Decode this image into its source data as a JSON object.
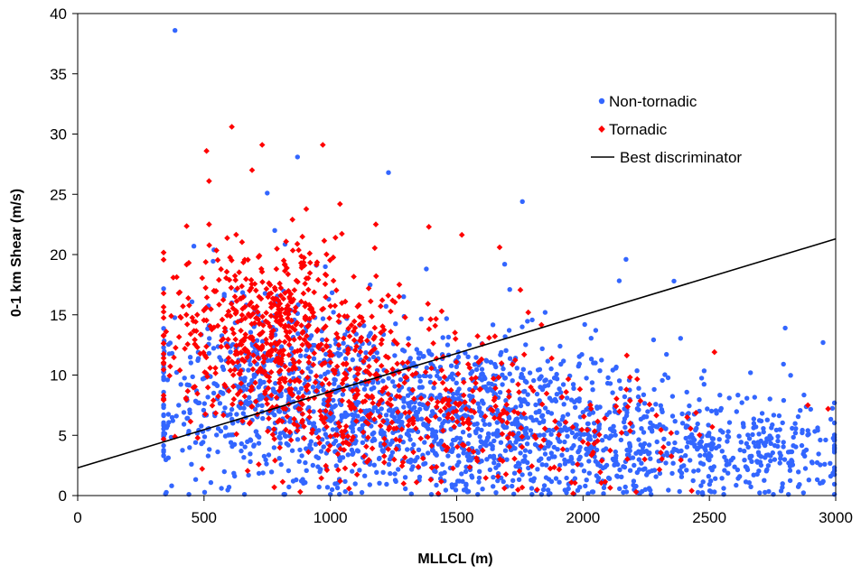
{
  "chart_data": {
    "type": "scatter",
    "title": "",
    "xlabel": "MLLCL (m)",
    "ylabel": "0-1 km Shear (m/s)",
    "xlim": [
      0,
      3000
    ],
    "ylim": [
      0,
      40
    ],
    "x_ticks": [
      "0",
      "500",
      "1000",
      "1500",
      "2000",
      "2500",
      "3000"
    ],
    "y_ticks": [
      "0",
      "5",
      "10",
      "15",
      "20",
      "25",
      "30",
      "35",
      "40"
    ],
    "grid": false,
    "legend_position": "top-right",
    "legend": {
      "non_tornadic": "Non-tornadic",
      "tornadic": "Tornadic",
      "discriminator": "Best discriminator"
    },
    "series": [
      {
        "name": "Non-tornadic",
        "marker": "circle",
        "color": "#3366ff",
        "points": [
          [
            385,
            38.6
          ],
          [
            870,
            28.1
          ],
          [
            1230,
            26.8
          ],
          [
            750,
            25.1
          ],
          [
            1760,
            24.4
          ],
          [
            2170,
            19.6
          ],
          [
            2360,
            17.8
          ],
          [
            1710,
            17.1
          ],
          [
            2950,
            12.7
          ],
          [
            2800,
            13.9
          ],
          [
            2980,
            1.6
          ],
          [
            440,
            0.1
          ],
          [
            660,
            0.1
          ],
          [
            1000,
            0.1
          ],
          [
            1400,
            0.1
          ],
          [
            2040,
            0.3
          ],
          [
            2520,
            0.3
          ],
          [
            460,
            20.7
          ],
          [
            610,
            16.0
          ],
          [
            700,
            14.2
          ],
          [
            1600,
            12.6
          ],
          [
            1850,
            15.2
          ],
          [
            1690,
            19.2
          ],
          [
            1380,
            18.8
          ],
          [
            980,
            19.0
          ],
          [
            520,
            14.1
          ],
          [
            540,
            9.3
          ],
          [
            420,
            6.9
          ],
          [
            490,
            4.3
          ],
          [
            780,
            22.0
          ],
          [
            1290,
            16.5
          ]
        ],
        "clusters": [
          {
            "cx": 1350,
            "cy": 6.5,
            "sx": 480,
            "sy": 3.3,
            "n": 1200
          },
          {
            "cx": 2250,
            "cy": 4.0,
            "sx": 380,
            "sy": 2.4,
            "n": 500
          },
          {
            "cx": 800,
            "cy": 10.5,
            "sx": 230,
            "sy": 3.6,
            "n": 330
          },
          {
            "cx": 2750,
            "cy": 3.4,
            "sx": 160,
            "sy": 2.0,
            "n": 100
          }
        ]
      },
      {
        "name": "Tornadic",
        "marker": "diamond",
        "color": "#ff0000",
        "points": [
          [
            610,
            30.6
          ],
          [
            730,
            29.1
          ],
          [
            970,
            29.1
          ],
          [
            510,
            28.6
          ],
          [
            690,
            27.0
          ],
          [
            520,
            26.1
          ],
          [
            850,
            22.9
          ],
          [
            1390,
            22.3
          ],
          [
            1670,
            20.6
          ],
          [
            350,
            13.6
          ],
          [
            370,
            14.9
          ],
          [
            400,
            16.8
          ],
          [
            430,
            15.0
          ],
          [
            2210,
            0.3
          ],
          [
            2430,
            0.4
          ],
          [
            2970,
            7.2
          ],
          [
            2520,
            11.9
          ],
          [
            2890,
            7.5
          ],
          [
            1020,
            21.4
          ],
          [
            1180,
            22.5
          ],
          [
            520,
            22.5
          ]
        ],
        "clusters": [
          {
            "cx": 760,
            "cy": 14.0,
            "sx": 210,
            "sy": 3.5,
            "n": 520
          },
          {
            "cx": 1150,
            "cy": 8.0,
            "sx": 330,
            "sy": 3.2,
            "n": 380
          },
          {
            "cx": 1800,
            "cy": 5.0,
            "sx": 420,
            "sy": 2.6,
            "n": 150
          }
        ]
      }
    ],
    "discriminator_line": {
      "x": [
        0,
        3000
      ],
      "y": [
        2.3,
        21.3
      ]
    }
  }
}
